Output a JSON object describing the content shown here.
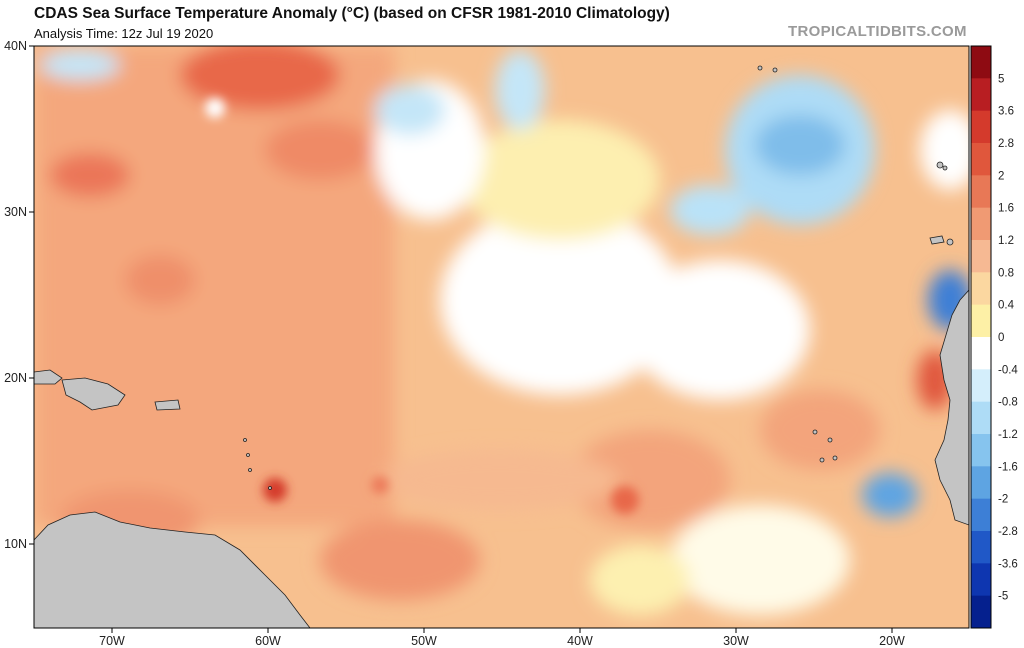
{
  "header": {
    "title": "CDAS Sea Surface Temperature Anomaly (°C) (based on CFSR 1981-2010 Climatology)",
    "subtitle": "Analysis Time: 12z Jul 19 2020",
    "credit": "TROPICALTIDBITS.COM"
  },
  "axes": {
    "lat_labels": [
      "40N",
      "30N",
      "20N",
      "10N"
    ],
    "lon_labels": [
      "70W",
      "60W",
      "50W",
      "40W",
      "30W",
      "20W"
    ]
  },
  "colorbar": {
    "labels": [
      "5",
      "3.6",
      "2.8",
      "2",
      "1.6",
      "1.2",
      "0.8",
      "0.4",
      "0",
      "-0.4",
      "-0.8",
      "-1.2",
      "-1.6",
      "-2",
      "-2.8",
      "-3.6",
      "-5"
    ],
    "colors": [
      "#8e0b12",
      "#b81e22",
      "#d43a2c",
      "#e0573c",
      "#e87856",
      "#f09a73",
      "#f6b993",
      "#fbd7a0",
      "#fdf0a6",
      "#ffffff",
      "#d4eefb",
      "#aedcf6",
      "#86c4ee",
      "#5ea4e2",
      "#3d7fd6",
      "#2058c7",
      "#0e36b0",
      "#05208e"
    ]
  }
}
